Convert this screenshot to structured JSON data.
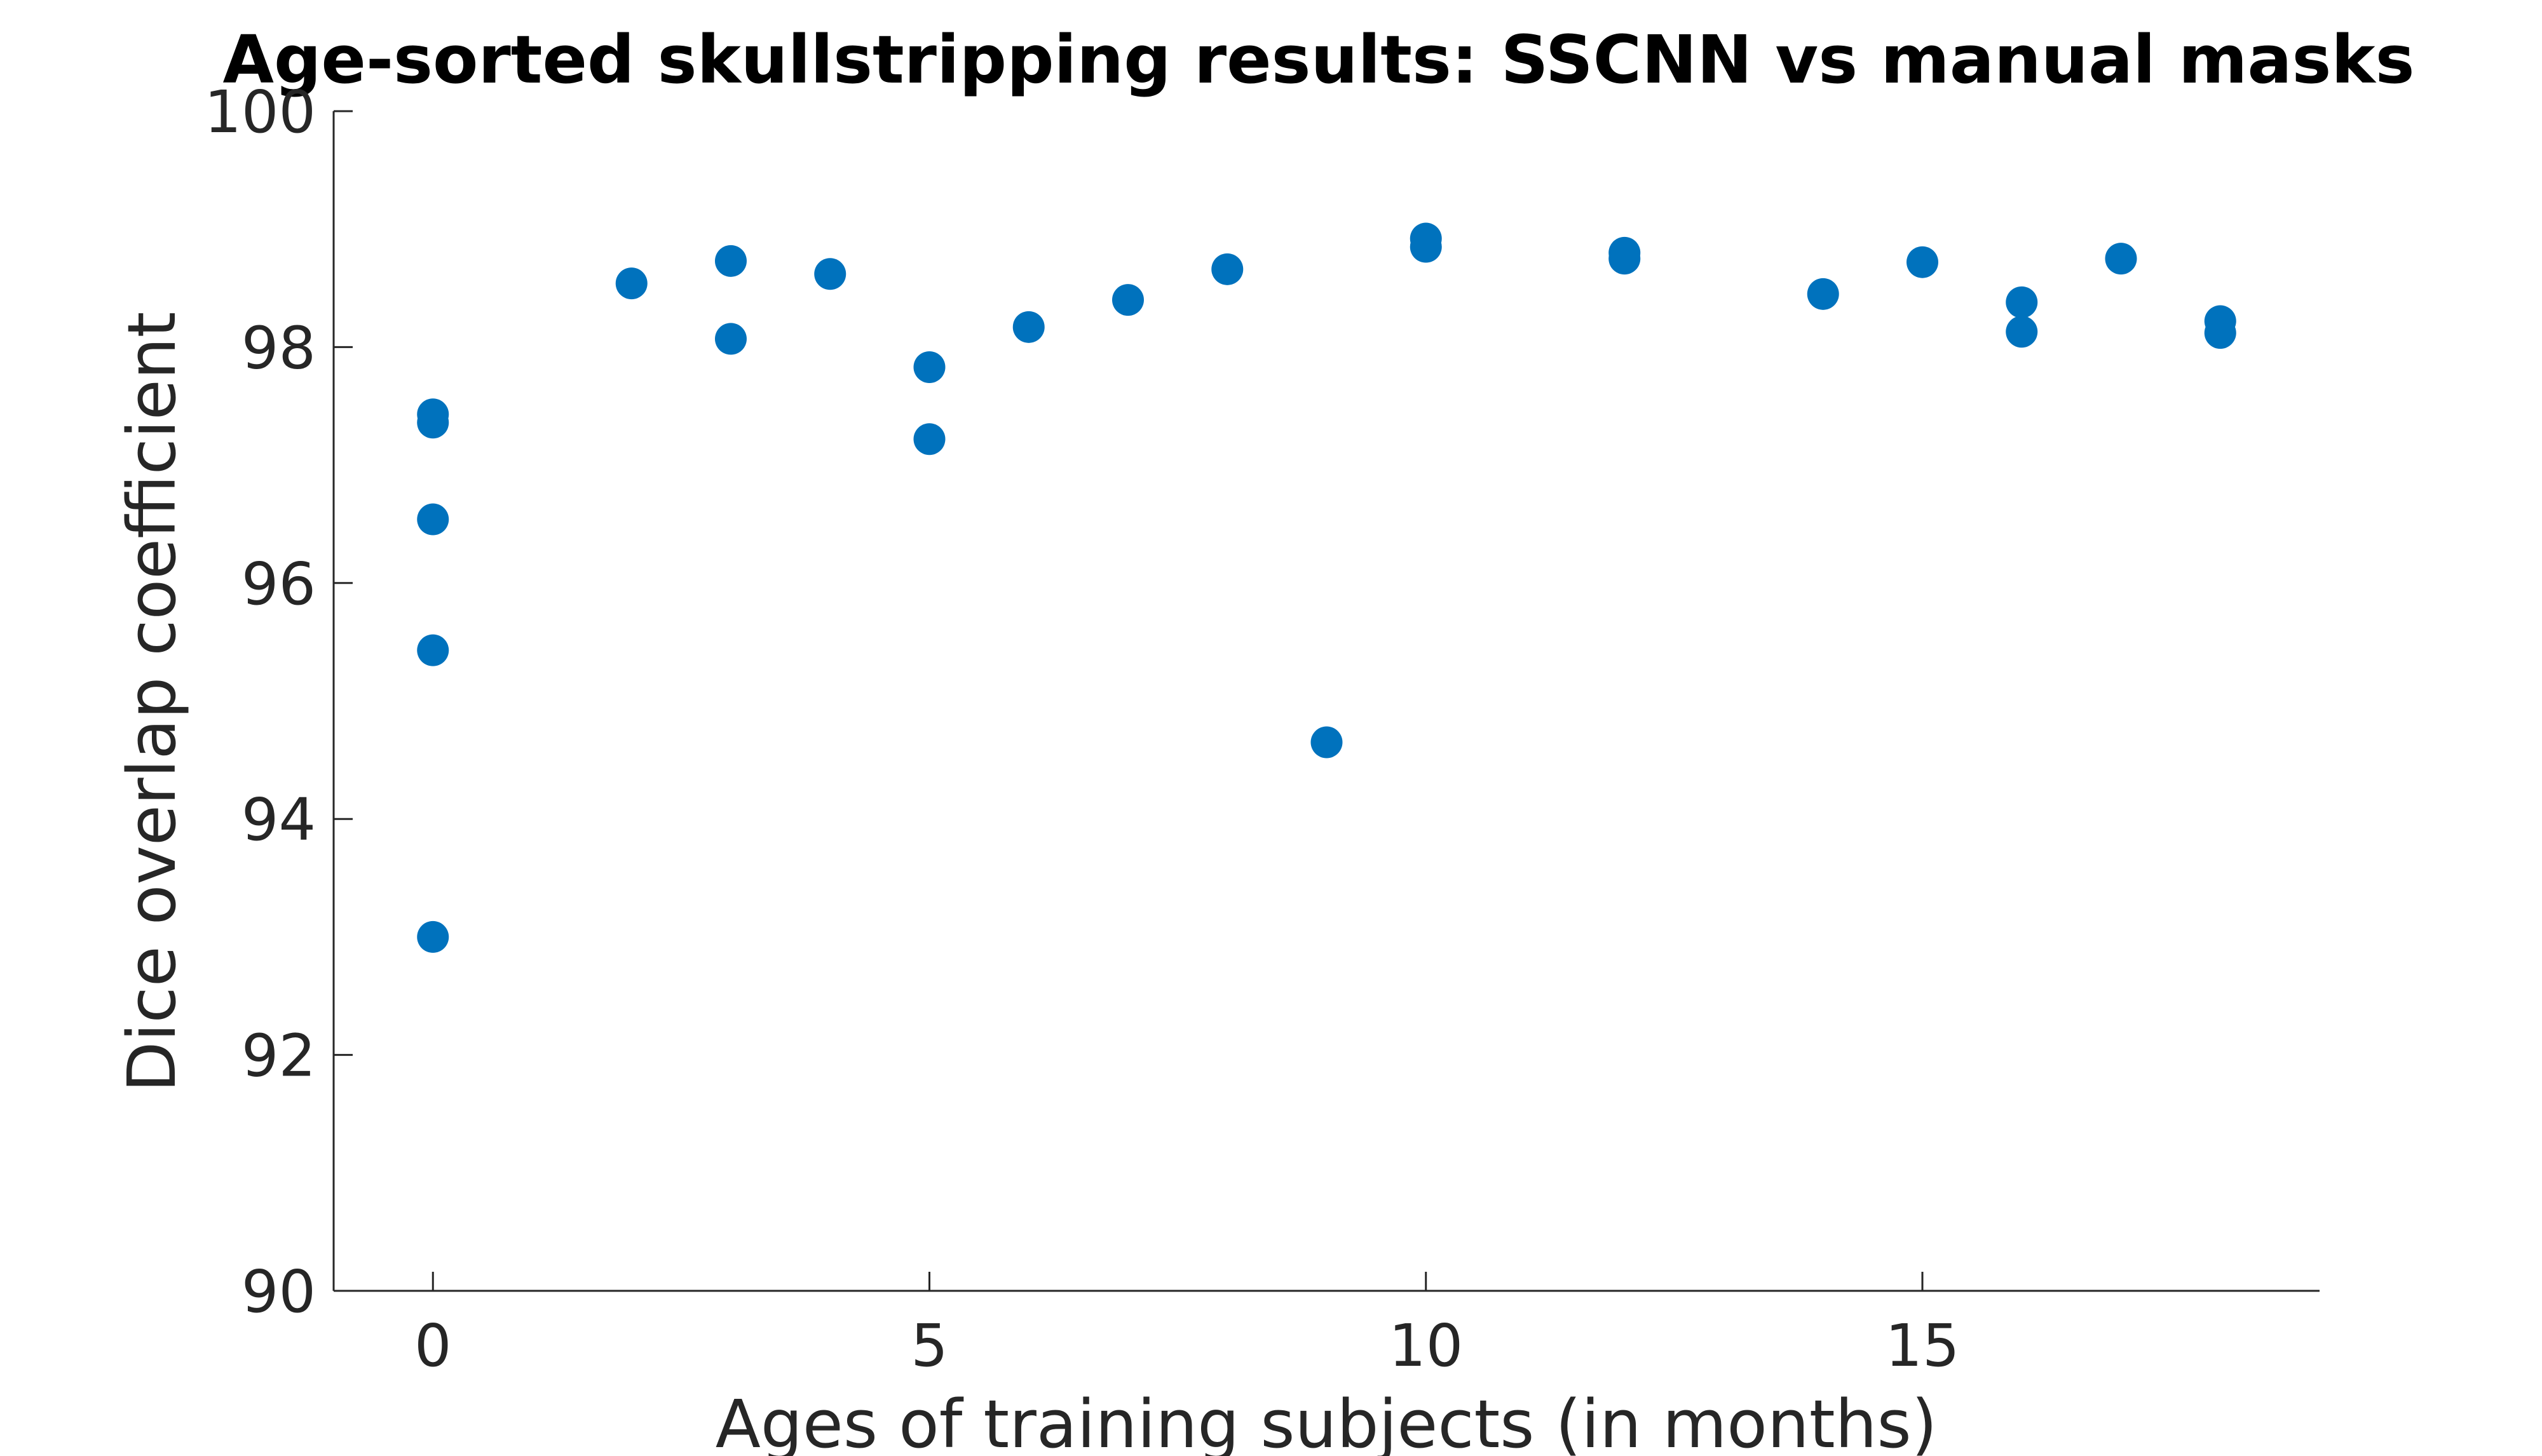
{
  "chart_data": {
    "type": "scatter",
    "title": "Age-sorted skullstripping results: SSCNN vs manual masks",
    "xlabel": "Ages of training subjects (in months)",
    "ylabel": "Dice overlap coefficient",
    "xlim": [
      -1,
      19
    ],
    "ylim": [
      90,
      100
    ],
    "xticks": [
      0,
      5,
      10,
      15
    ],
    "yticks": [
      90,
      92,
      94,
      96,
      98,
      100
    ],
    "grid": false,
    "marker_color": "#0072BD",
    "points": [
      {
        "x": 0,
        "y": 97.43
      },
      {
        "x": 0,
        "y": 97.36
      },
      {
        "x": 0,
        "y": 96.54
      },
      {
        "x": 0,
        "y": 95.43
      },
      {
        "x": 0,
        "y": 93.0
      },
      {
        "x": 2,
        "y": 98.54
      },
      {
        "x": 3,
        "y": 98.73
      },
      {
        "x": 3,
        "y": 98.07
      },
      {
        "x": 4,
        "y": 98.62
      },
      {
        "x": 5,
        "y": 97.83
      },
      {
        "x": 5,
        "y": 97.22
      },
      {
        "x": 6,
        "y": 98.17
      },
      {
        "x": 7,
        "y": 98.4
      },
      {
        "x": 8,
        "y": 98.66
      },
      {
        "x": 9,
        "y": 94.65
      },
      {
        "x": 10,
        "y": 98.92
      },
      {
        "x": 10,
        "y": 98.85
      },
      {
        "x": 12,
        "y": 98.8
      },
      {
        "x": 12,
        "y": 98.75
      },
      {
        "x": 14,
        "y": 98.45
      },
      {
        "x": 15,
        "y": 98.72
      },
      {
        "x": 16,
        "y": 98.38
      },
      {
        "x": 16,
        "y": 98.13
      },
      {
        "x": 17,
        "y": 98.75
      },
      {
        "x": 18,
        "y": 98.22
      },
      {
        "x": 18,
        "y": 98.12
      }
    ]
  }
}
